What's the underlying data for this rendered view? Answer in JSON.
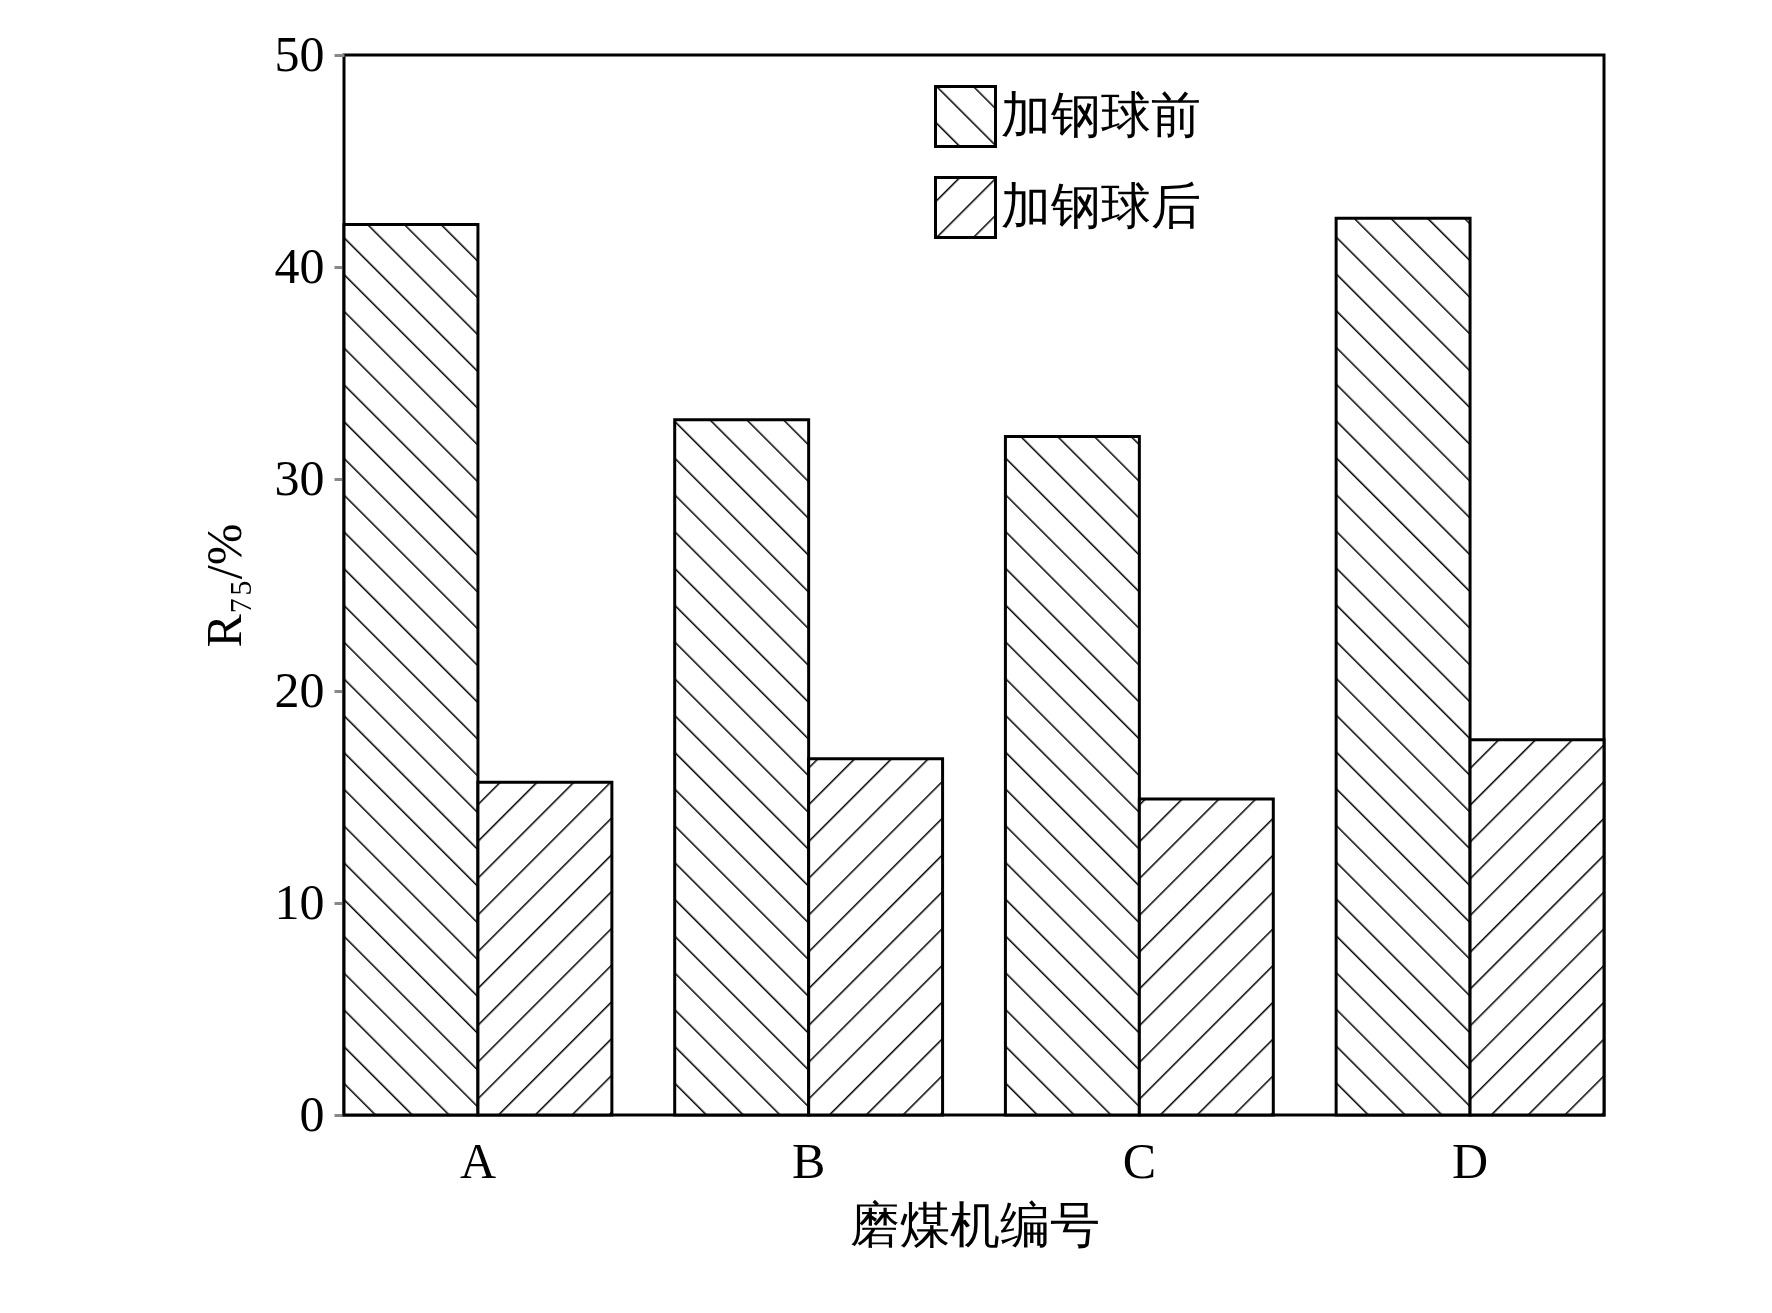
{
  "chart_data": {
    "type": "bar",
    "xlabel": "磨煤机编号",
    "ylabel": "R₇₅/%",
    "categories": [
      "A",
      "B",
      "C",
      "D"
    ],
    "series": [
      {
        "name": "加钢球前",
        "color": "#000000",
        "values": [
          42.0,
          32.8,
          32.0,
          42.3
        ]
      },
      {
        "name": "加钢球后",
        "color": "#000000",
        "values": [
          15.7,
          16.8,
          14.9,
          17.7
        ]
      }
    ],
    "ylim": [
      0,
      50
    ],
    "yticks": [
      0,
      10,
      20,
      30,
      40,
      50
    ],
    "grid": false,
    "legend": "top"
  }
}
